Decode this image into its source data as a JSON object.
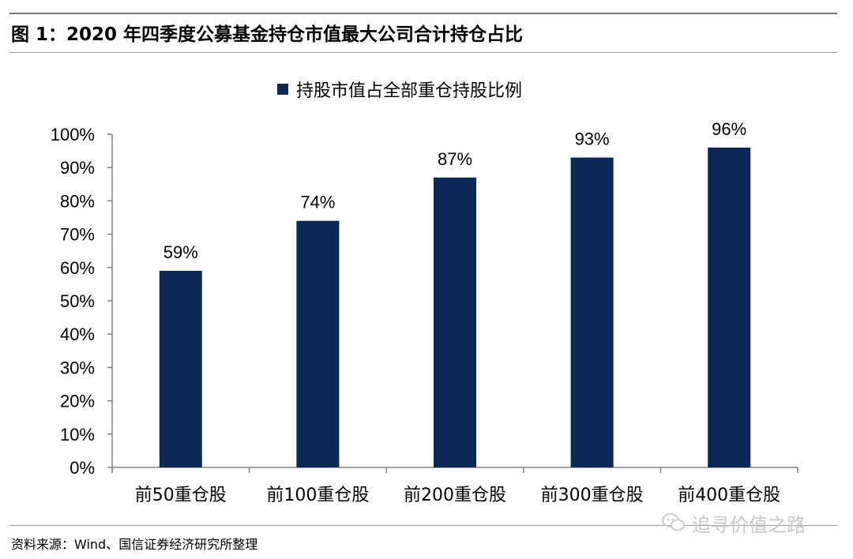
{
  "figure": {
    "title": "图  1：2020 年四季度公募基金持仓市值最大公司合计持仓占比",
    "source": "资料来源：Wind、国信证券经济研究所整理",
    "watermark": "追寻价值之路"
  },
  "chart_data": {
    "type": "bar",
    "categories": [
      "前50重仓股",
      "前100重仓股",
      "前200重仓股",
      "前300重仓股",
      "前400重仓股"
    ],
    "series": [
      {
        "name": "持股市值占全部重仓持股比例",
        "values": [
          59,
          74,
          87,
          93,
          96
        ]
      }
    ],
    "data_labels": [
      "59%",
      "74%",
      "87%",
      "93%",
      "96%"
    ],
    "ytick_labels": [
      "0%",
      "10%",
      "20%",
      "30%",
      "40%",
      "50%",
      "60%",
      "70%",
      "80%",
      "90%",
      "100%"
    ],
    "ylim": [
      0,
      100
    ],
    "grid": false,
    "legend_position": "top",
    "colors": {
      "bar": "#0c2856",
      "axis": "#808080"
    }
  }
}
